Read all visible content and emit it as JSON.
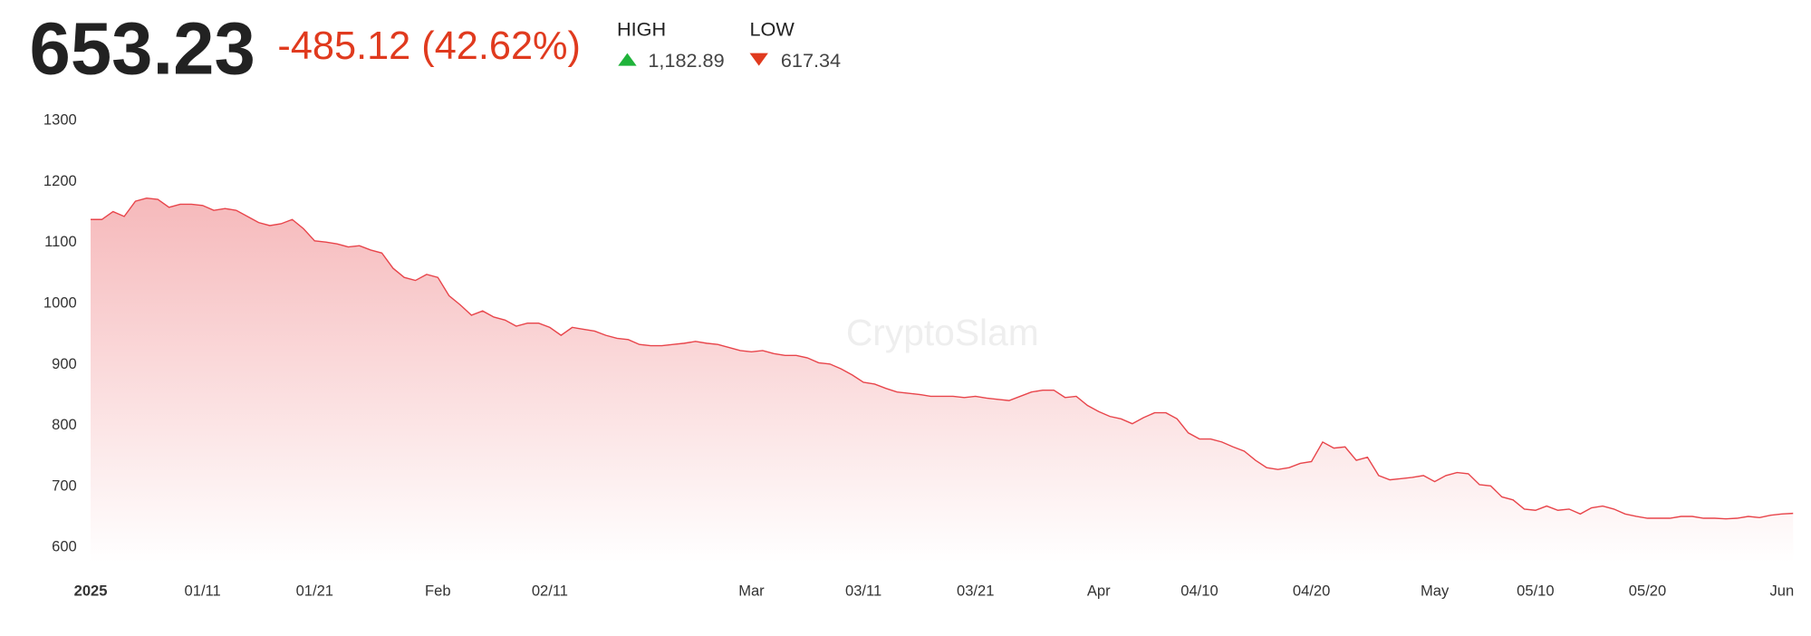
{
  "header": {
    "price": "653.23",
    "change": "-485.12 (42.62%)",
    "high_label": "HIGH",
    "high": "1,182.89",
    "low_label": "LOW",
    "low": "617.34"
  },
  "chart_data": {
    "type": "area",
    "watermark": "CryptoSlam",
    "color": "#e8454b",
    "categories": [
      "2025",
      null,
      null,
      null,
      null,
      null,
      null,
      null,
      null,
      null,
      "01/11",
      null,
      null,
      null,
      null,
      null,
      null,
      null,
      null,
      null,
      "01/21",
      null,
      null,
      null,
      null,
      null,
      null,
      null,
      null,
      null,
      null,
      "Feb",
      null,
      null,
      null,
      null,
      null,
      null,
      null,
      null,
      null,
      "02/11",
      null,
      null,
      null,
      null,
      null,
      null,
      null,
      null,
      null,
      null,
      null,
      null,
      null,
      null,
      null,
      null,
      null,
      "Mar",
      null,
      null,
      null,
      null,
      null,
      null,
      null,
      null,
      null,
      "03/11",
      null,
      null,
      null,
      null,
      null,
      null,
      null,
      null,
      null,
      "03/21",
      null,
      null,
      null,
      null,
      null,
      null,
      null,
      null,
      null,
      null,
      "Apr",
      null,
      null,
      null,
      null,
      null,
      null,
      null,
      null,
      "04/10",
      null,
      null,
      null,
      null,
      null,
      null,
      null,
      null,
      null,
      "04/20",
      null,
      null,
      null,
      null,
      null,
      null,
      null,
      null,
      null,
      null,
      "May",
      null,
      null,
      null,
      null,
      null,
      null,
      null,
      null,
      "05/10",
      null,
      null,
      null,
      null,
      null,
      null,
      null,
      null,
      null,
      "05/20",
      null,
      null,
      null,
      null,
      null,
      null,
      null,
      null,
      null,
      null,
      null,
      "Jun",
      null
    ],
    "values": [
      1135,
      1135,
      1148,
      1140,
      1165,
      1170,
      1168,
      1155,
      1160,
      1160,
      1158,
      1150,
      1153,
      1150,
      1140,
      1130,
      1125,
      1128,
      1135,
      1120,
      1100,
      1098,
      1095,
      1090,
      1092,
      1085,
      1080,
      1055,
      1040,
      1035,
      1045,
      1040,
      1010,
      995,
      978,
      985,
      975,
      970,
      960,
      965,
      965,
      958,
      945,
      958,
      955,
      952,
      945,
      940,
      938,
      930,
      928,
      928,
      930,
      932,
      935,
      932,
      930,
      925,
      920,
      918,
      920,
      915,
      912,
      912,
      908,
      900,
      898,
      890,
      880,
      868,
      865,
      858,
      852,
      850,
      848,
      845,
      845,
      845,
      843,
      845,
      842,
      840,
      838,
      845,
      852,
      855,
      855,
      843,
      845,
      830,
      820,
      812,
      808,
      800,
      810,
      818,
      818,
      808,
      785,
      775,
      775,
      770,
      762,
      755,
      740,
      728,
      725,
      728,
      735,
      738,
      770,
      760,
      762,
      740,
      745,
      715,
      708,
      710,
      712,
      715,
      705,
      715,
      720,
      718,
      700,
      698,
      680,
      675,
      660,
      658,
      665,
      658,
      660,
      652,
      662,
      665,
      660,
      652,
      648,
      645,
      645,
      645,
      648,
      648,
      645,
      645,
      644,
      645,
      648,
      646,
      650,
      652,
      653
    ],
    "ylim": [
      573,
      1300
    ],
    "yticks": [
      600,
      700,
      800,
      900,
      1000,
      1100,
      1200,
      1300
    ]
  }
}
